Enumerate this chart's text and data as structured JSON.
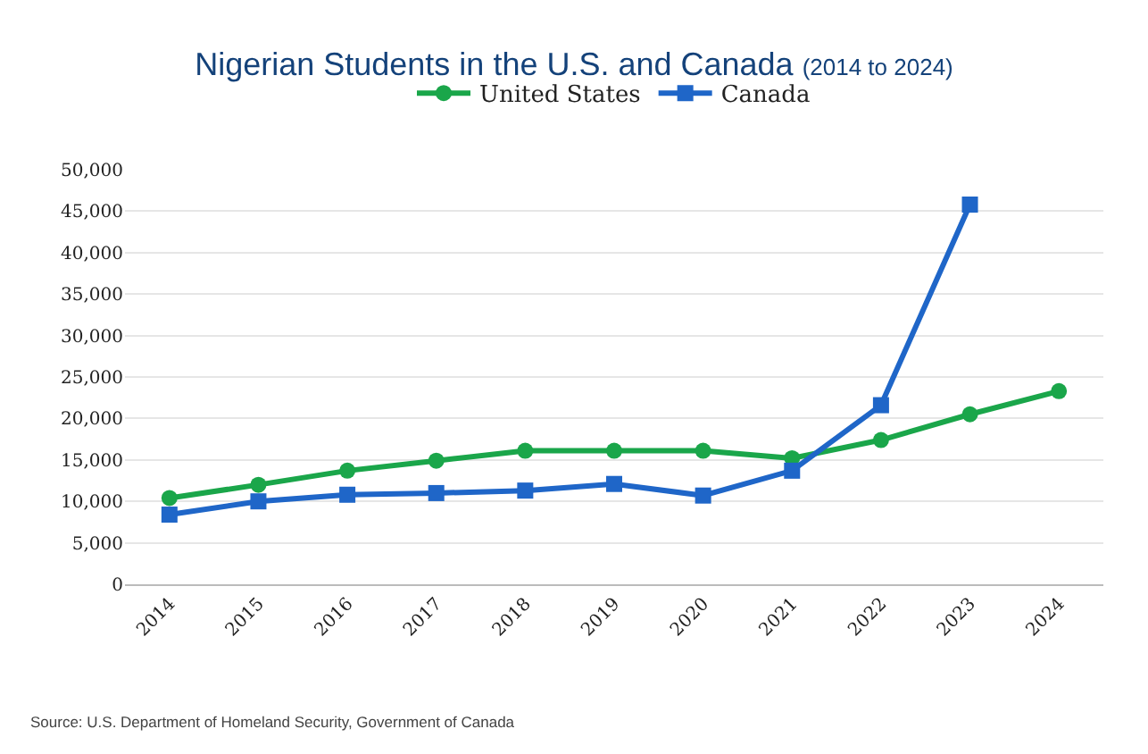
{
  "chart_data": {
    "type": "line",
    "title": "Nigerian Students in the U.S. and Canada",
    "subtitle": "(2014 to 2024)",
    "categories": [
      "2014",
      "2015",
      "2016",
      "2017",
      "2018",
      "2019",
      "2020",
      "2021",
      "2022",
      "2023",
      "2024"
    ],
    "series": [
      {
        "name": "United States",
        "color": "#1aa64a",
        "marker": "circle",
        "values": [
          10400,
          12000,
          13700,
          14900,
          16100,
          16100,
          16100,
          15200,
          17400,
          20500,
          23300
        ]
      },
      {
        "name": "Canada",
        "color": "#1f66c8",
        "marker": "square",
        "values": [
          8400,
          10000,
          10800,
          11000,
          11300,
          12100,
          10700,
          13700,
          21600,
          45800,
          null
        ]
      }
    ],
    "ylim": [
      0,
      50000
    ],
    "yticks": [
      {
        "value": 0,
        "label": "0"
      },
      {
        "value": 5000,
        "label": "5,000"
      },
      {
        "value": 10000,
        "label": "10,000"
      },
      {
        "value": 15000,
        "label": "15,000"
      },
      {
        "value": 20000,
        "label": "20,000"
      },
      {
        "value": 25000,
        "label": "25,000"
      },
      {
        "value": 30000,
        "label": "30,000"
      },
      {
        "value": 35000,
        "label": "35,000"
      },
      {
        "value": 40000,
        "label": "40,000"
      },
      {
        "value": 45000,
        "label": "45,000"
      },
      {
        "value": 50000,
        "label": "50,000"
      }
    ],
    "grid": "y",
    "legend": "top",
    "line_style": "solid",
    "annotations": [
      "Source: U.S. Department of Homeland Security, Government of Canada"
    ]
  }
}
